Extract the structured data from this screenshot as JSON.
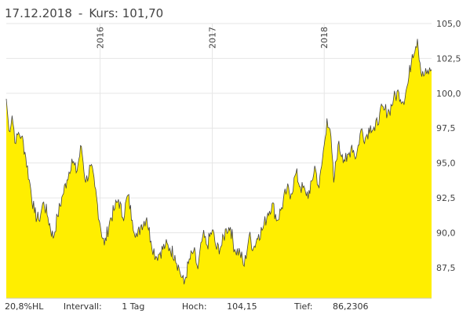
{
  "header": {
    "date": "17.12.2018",
    "separator": "-",
    "price_label": "Kurs:",
    "price_value": "101,70"
  },
  "footer": {
    "range_pct": "20,8%HL",
    "interval_label": "Intervall:",
    "interval_value": "1 Tag",
    "high_label": "Hoch:",
    "high_value": "104,15",
    "low_label": "Tief:",
    "low_value": "86,2306"
  },
  "chart_data": {
    "type": "area",
    "title": "",
    "xlabel": "",
    "ylabel": "",
    "ylim": [
      85.3,
      105.0
    ],
    "y_ticks": [
      87.5,
      90.0,
      92.5,
      95.0,
      97.5,
      100.0,
      102.5,
      105.0
    ],
    "y_tick_labels": [
      "87,5",
      "90,0",
      "92,5",
      "95,0",
      "97,5",
      "100,0",
      "102,5",
      "105,0"
    ],
    "x_start": "2015-03-01",
    "x_end": "2018-12-17",
    "year_markers": [
      {
        "label": "2016",
        "date": "2016-01-01"
      },
      {
        "label": "2017",
        "date": "2017-01-01"
      },
      {
        "label": "2018",
        "date": "2018-01-01"
      }
    ],
    "fill_color": "#ffee00",
    "line_color": "#444444",
    "grid": true,
    "x": [
      "2015-03-01",
      "2015-03-10",
      "2015-03-20",
      "2015-04-01",
      "2015-04-10",
      "2015-04-20",
      "2015-05-01",
      "2015-05-15",
      "2015-06-01",
      "2015-06-15",
      "2015-07-01",
      "2015-07-15",
      "2015-08-01",
      "2015-08-15",
      "2015-09-01",
      "2015-09-15",
      "2015-10-01",
      "2015-10-15",
      "2015-11-01",
      "2015-11-15",
      "2015-12-01",
      "2015-12-15",
      "2016-01-01",
      "2016-01-15",
      "2016-02-01",
      "2016-02-15",
      "2016-03-01",
      "2016-03-15",
      "2016-04-01",
      "2016-04-15",
      "2016-05-01",
      "2016-05-15",
      "2016-06-01",
      "2016-06-15",
      "2016-07-01",
      "2016-07-15",
      "2016-08-01",
      "2016-08-15",
      "2016-09-01",
      "2016-09-15",
      "2016-10-01",
      "2016-10-15",
      "2016-11-01",
      "2016-11-15",
      "2016-12-01",
      "2016-12-15",
      "2017-01-01",
      "2017-01-15",
      "2017-02-01",
      "2017-02-15",
      "2017-03-01",
      "2017-03-15",
      "2017-04-01",
      "2017-04-15",
      "2017-05-01",
      "2017-05-15",
      "2017-06-01",
      "2017-06-15",
      "2017-07-01",
      "2017-07-15",
      "2017-08-01",
      "2017-08-15",
      "2017-09-01",
      "2017-09-15",
      "2017-10-01",
      "2017-10-15",
      "2017-11-01",
      "2017-11-15",
      "2017-12-01",
      "2017-12-15",
      "2018-01-01",
      "2018-01-10",
      "2018-01-20",
      "2018-02-01",
      "2018-02-15",
      "2018-03-01",
      "2018-03-15",
      "2018-04-01",
      "2018-04-15",
      "2018-05-01",
      "2018-05-15",
      "2018-06-01",
      "2018-06-15",
      "2018-07-01",
      "2018-07-15",
      "2018-08-01",
      "2018-08-15",
      "2018-09-01",
      "2018-09-15",
      "2018-10-01",
      "2018-10-15",
      "2018-11-01",
      "2018-11-15",
      "2018-12-01",
      "2018-12-17"
    ],
    "values": [
      99.6,
      97.3,
      98.4,
      96.4,
      97.2,
      96.9,
      95.8,
      93.8,
      91.4,
      90.9,
      92.2,
      91.1,
      89.6,
      91.2,
      92.7,
      93.8,
      95.3,
      94.3,
      96.2,
      93.6,
      94.8,
      93.3,
      90.6,
      89.1,
      90.8,
      91.6,
      92.4,
      91.1,
      92.7,
      90.9,
      89.7,
      90.6,
      91.1,
      89.4,
      88.3,
      88.6,
      89.1,
      88.9,
      88.4,
      87.4,
      86.3,
      87.8,
      88.7,
      87.4,
      89.8,
      89.1,
      90.2,
      88.8,
      89.1,
      90.3,
      90.4,
      88.8,
      88.6,
      87.6,
      89.8,
      88.9,
      89.9,
      90.3,
      91.4,
      92.1,
      90.9,
      91.8,
      93.1,
      92.8,
      94.3,
      93.3,
      92.9,
      92.8,
      94.8,
      93.2,
      96.3,
      98.2,
      97.4,
      93.6,
      96.3,
      95.6,
      95.1,
      96.3,
      95.4,
      97.4,
      96.8,
      97.7,
      97.3,
      98.6,
      98.8,
      98.7,
      99.6,
      100.1,
      99.4,
      100.7,
      102.8,
      103.9,
      101.2,
      101.4,
      101.7
    ]
  }
}
